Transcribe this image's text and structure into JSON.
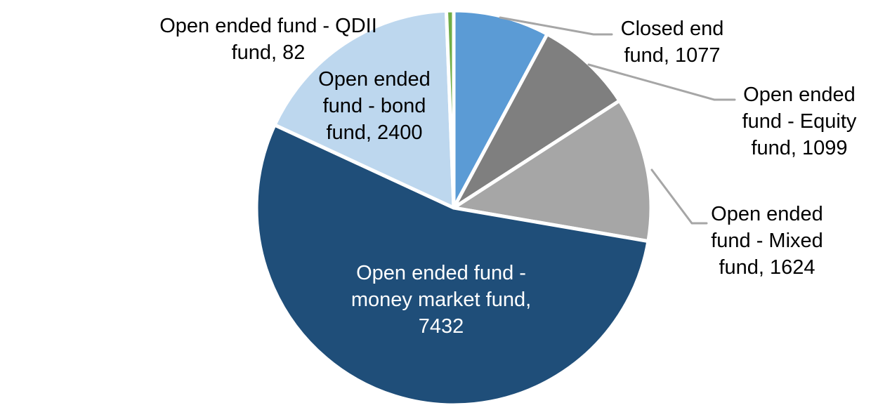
{
  "chart_data": {
    "type": "pie",
    "title": "",
    "total": 13714,
    "direction": "clockwise",
    "start_angle_deg": 0,
    "slices": [
      {
        "label": "Closed end fund",
        "value": 1077,
        "color": "#5B9BD5"
      },
      {
        "label": "Open ended fund - Equity fund",
        "value": 1099,
        "color": "#7F7F7F"
      },
      {
        "label": "Open ended fund - Mixed fund",
        "value": 1624,
        "color": "#A6A6A6"
      },
      {
        "label": "Open ended fund - money market fund",
        "value": 7432,
        "color": "#1F4E79"
      },
      {
        "label": "Open ended fund - bond fund",
        "value": 2400,
        "color": "#BDD7EE"
      },
      {
        "label": "Open ended fund - QDII fund",
        "value": 82,
        "color": "#70AD47"
      }
    ],
    "leader_line_color": "#A6A6A6",
    "separator_color": "#FFFFFF",
    "legend_position": "none",
    "data_labels": "category name and value"
  },
  "labels": {
    "qdii": [
      "Open ended fund - QDII",
      "fund, 82"
    ],
    "bond": [
      "Open ended",
      "fund - bond",
      "fund, 2400"
    ],
    "money_market": [
      "Open ended fund -",
      "money market fund,",
      "7432"
    ],
    "closed_end": [
      "Closed end",
      "fund, 1077"
    ],
    "equity": [
      "Open ended",
      "fund - Equity",
      "fund, 1099"
    ],
    "mixed": [
      "Open ended",
      "fund - Mixed",
      "fund, 1624"
    ]
  }
}
